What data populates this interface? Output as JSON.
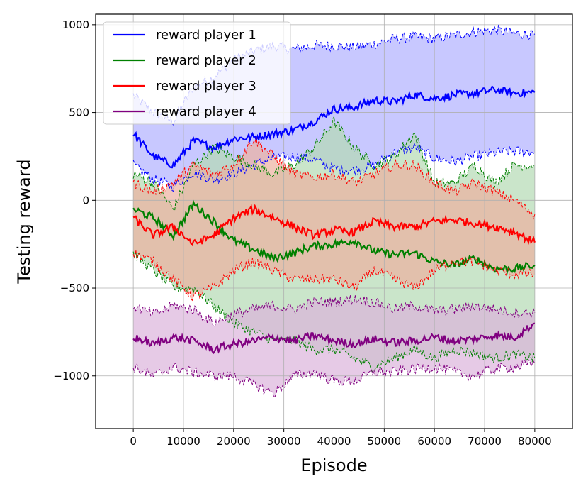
{
  "chart_data": {
    "type": "line",
    "xlabel": "Episode",
    "ylabel": "Testing reward",
    "xlim": [
      -7500,
      87500
    ],
    "ylim": [
      -1300,
      1060
    ],
    "xticks": [
      0,
      10000,
      20000,
      30000,
      40000,
      50000,
      60000,
      70000,
      80000
    ],
    "yticks": [
      -1000,
      -500,
      0,
      500,
      1000
    ],
    "ytick_labels": [
      "−1000",
      "−500",
      "0",
      "500",
      "1000"
    ],
    "grid": true,
    "legend_position": "top-left",
    "series": [
      {
        "name": "reward player 1",
        "color": "#0000ff",
        "fill": "#b0b0ff",
        "x": [
          0,
          4000,
          8000,
          12000,
          16000,
          20000,
          24000,
          28000,
          32000,
          36000,
          40000,
          44000,
          48000,
          52000,
          56000,
          60000,
          64000,
          68000,
          72000,
          76000,
          80000
        ],
        "mean": [
          380,
          250,
          200,
          340,
          300,
          350,
          360,
          380,
          400,
          450,
          520,
          530,
          570,
          560,
          600,
          580,
          600,
          610,
          630,
          610,
          615
        ],
        "upper": [
          600,
          500,
          450,
          650,
          700,
          800,
          850,
          880,
          860,
          880,
          880,
          870,
          890,
          920,
          930,
          920,
          940,
          960,
          970,
          950,
          945
        ],
        "lower": [
          200,
          120,
          80,
          160,
          120,
          150,
          200,
          240,
          250,
          230,
          180,
          170,
          200,
          270,
          300,
          240,
          220,
          250,
          270,
          280,
          275
        ]
      },
      {
        "name": "reward player 2",
        "color": "#008000",
        "fill": "#b3dab3",
        "x": [
          0,
          4000,
          8000,
          12000,
          16000,
          20000,
          24000,
          28000,
          32000,
          36000,
          40000,
          44000,
          48000,
          52000,
          56000,
          60000,
          64000,
          68000,
          72000,
          76000,
          80000
        ],
        "mean": [
          -50,
          -100,
          -200,
          -20,
          -120,
          -230,
          -280,
          -330,
          -300,
          -260,
          -250,
          -230,
          -290,
          -310,
          -300,
          -350,
          -370,
          -330,
          -390,
          -390,
          -370
        ],
        "upper": [
          150,
          100,
          -50,
          200,
          300,
          250,
          200,
          150,
          200,
          300,
          450,
          300,
          200,
          250,
          380,
          100,
          100,
          200,
          100,
          200,
          200
        ],
        "lower": [
          -300,
          -400,
          -500,
          -500,
          -600,
          -700,
          -750,
          -800,
          -800,
          -850,
          -850,
          -900,
          -950,
          -900,
          -850,
          -900,
          -850,
          -870,
          -900,
          -880,
          -900
        ]
      },
      {
        "name": "reward player 3",
        "color": "#ff0000",
        "fill": "#ecb0a0",
        "x": [
          0,
          4000,
          8000,
          12000,
          16000,
          20000,
          24000,
          28000,
          32000,
          36000,
          40000,
          44000,
          48000,
          52000,
          56000,
          60000,
          64000,
          68000,
          72000,
          76000,
          80000
        ],
        "mean": [
          -100,
          -200,
          -150,
          -250,
          -200,
          -100,
          -50,
          -100,
          -150,
          -200,
          -170,
          -180,
          -120,
          -150,
          -150,
          -120,
          -110,
          -130,
          -150,
          -180,
          -240
        ],
        "upper": [
          100,
          50,
          100,
          200,
          150,
          200,
          350,
          250,
          150,
          130,
          150,
          100,
          150,
          200,
          200,
          100,
          50,
          100,
          50,
          0,
          -80
        ],
        "lower": [
          -300,
          -350,
          -450,
          -550,
          -500,
          -400,
          -350,
          -400,
          -450,
          -450,
          -450,
          -500,
          -400,
          -450,
          -500,
          -400,
          -350,
          -350,
          -400,
          -420,
          -420
        ]
      },
      {
        "name": "reward player 4",
        "color": "#800080",
        "fill": "#dbb3db",
        "x": [
          0,
          4000,
          8000,
          12000,
          16000,
          20000,
          24000,
          28000,
          32000,
          36000,
          40000,
          44000,
          48000,
          52000,
          56000,
          60000,
          64000,
          68000,
          72000,
          76000,
          80000
        ],
        "mean": [
          -780,
          -820,
          -780,
          -800,
          -850,
          -820,
          -800,
          -780,
          -800,
          -770,
          -800,
          -820,
          -790,
          -810,
          -800,
          -780,
          -800,
          -790,
          -770,
          -780,
          -700
        ],
        "upper": [
          -600,
          -650,
          -600,
          -620,
          -700,
          -650,
          -620,
          -600,
          -620,
          -580,
          -580,
          -560,
          -580,
          -620,
          -600,
          -630,
          -620,
          -600,
          -620,
          -640,
          -640
        ],
        "lower": [
          -950,
          -1000,
          -950,
          -980,
          -1000,
          -1000,
          -1050,
          -1100,
          -1000,
          -980,
          -1030,
          -1030,
          -980,
          -980,
          -960,
          -950,
          -980,
          -1000,
          -960,
          -950,
          -930
        ]
      }
    ]
  }
}
